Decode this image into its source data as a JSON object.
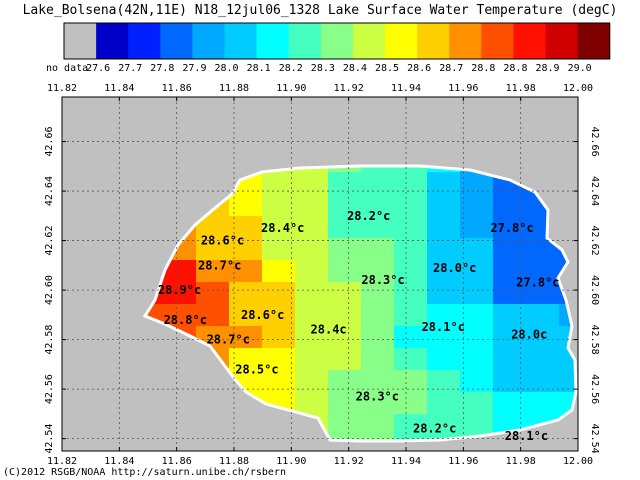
{
  "title": "Lake_Bolsena(42N,11E) N18_12jul06_1328 Lake Surface Water Temperature (degC)",
  "credit": "(C)2012 RSGB/NOAA http://saturn.unibe.ch/rsbern",
  "legend": {
    "nodata_label": "no data",
    "nodata_color": "#c0c0c0",
    "items": [
      {
        "label": "27.6",
        "color": "#0000c8"
      },
      {
        "label": "27.7",
        "color": "#0020ff"
      },
      {
        "label": "27.8",
        "color": "#0068ff"
      },
      {
        "label": "27.9",
        "color": "#00a8ff"
      },
      {
        "label": "28.0",
        "color": "#00ccff"
      },
      {
        "label": "28.1",
        "color": "#00ffff"
      },
      {
        "label": "28.2",
        "color": "#44ffc0"
      },
      {
        "label": "28.3",
        "color": "#88ff88"
      },
      {
        "label": "28.4",
        "color": "#ccff44"
      },
      {
        "label": "28.5",
        "color": "#ffff00"
      },
      {
        "label": "28.6",
        "color": "#ffd000"
      },
      {
        "label": "28.7",
        "color": "#ff9000"
      },
      {
        "label": "28.8",
        "color": "#ff5000"
      },
      {
        "label": "28.8",
        "color": "#ff1000"
      },
      {
        "label": "28.9",
        "color": "#d00000"
      },
      {
        "label": "29.0",
        "color": "#800000"
      }
    ]
  },
  "axes": {
    "lon_ticks": [
      "11.82",
      "11.84",
      "11.86",
      "11.88",
      "11.90",
      "11.92",
      "11.94",
      "11.96",
      "11.98",
      "12.00"
    ],
    "lat_ticks": [
      "42.66",
      "42.64",
      "42.62",
      "42.60",
      "42.58",
      "42.56",
      "42.54"
    ]
  },
  "temperature_labels": [
    {
      "text": "28.2°c",
      "lon": 11.927,
      "lat": 42.63
    },
    {
      "text": "28.4°c",
      "lon": 11.897,
      "lat": 42.625
    },
    {
      "text": "27.8°c",
      "lon": 11.977,
      "lat": 42.625
    },
    {
      "text": "28.6°c",
      "lon": 11.876,
      "lat": 42.62
    },
    {
      "text": "28.7°c",
      "lon": 11.875,
      "lat": 42.61
    },
    {
      "text": "28.0°c",
      "lon": 11.957,
      "lat": 42.609
    },
    {
      "text": "28.3°c",
      "lon": 11.932,
      "lat": 42.604
    },
    {
      "text": "27.8°c",
      "lon": 11.986,
      "lat": 42.603
    },
    {
      "text": "28.9°c",
      "lon": 11.861,
      "lat": 42.6
    },
    {
      "text": "28.6°c",
      "lon": 11.89,
      "lat": 42.59
    },
    {
      "text": "28.8°c",
      "lon": 11.863,
      "lat": 42.588
    },
    {
      "text": "28.1°c",
      "lon": 11.953,
      "lat": 42.585
    },
    {
      "text": "28.4c",
      "lon": 11.913,
      "lat": 42.584
    },
    {
      "text": "28.0c",
      "lon": 11.983,
      "lat": 42.582
    },
    {
      "text": "28.7°c",
      "lon": 11.878,
      "lat": 42.58
    },
    {
      "text": "28.5°c",
      "lon": 11.888,
      "lat": 42.568
    },
    {
      "text": "28.3°c",
      "lon": 11.93,
      "lat": 42.557
    },
    {
      "text": "28.2°c",
      "lon": 11.95,
      "lat": 42.544
    },
    {
      "text": "28.1°c",
      "lon": 11.982,
      "lat": 42.541
    }
  ]
}
